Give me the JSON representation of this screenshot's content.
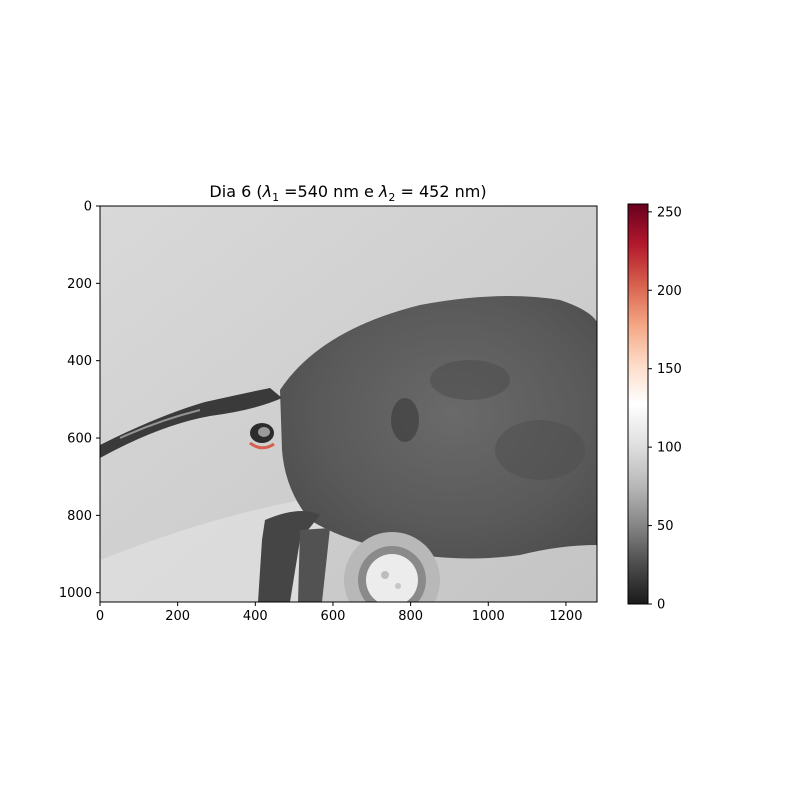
{
  "chart_data": {
    "type": "heatmap",
    "title": "Dia 6 (λ₁ =540 nm e λ₂ = 452 nm)",
    "title_parts": {
      "prefix": "Dia 6 (",
      "lambda": "λ",
      "sub1": "1",
      "mid": " =540 nm e ",
      "sub2": "2",
      "suffix": " = 452 nm)"
    },
    "image_width": 1280,
    "image_height": 1024,
    "xlim": [
      0,
      1280
    ],
    "ylim": [
      1024,
      0
    ],
    "x_ticks": [
      0,
      200,
      400,
      600,
      800,
      1000,
      1200
    ],
    "y_ticks": [
      0,
      200,
      400,
      600,
      800,
      1000
    ],
    "colorbar": {
      "colormap": "RdGy_r",
      "vmin": 0,
      "vmax": 255,
      "ticks": [
        0,
        50,
        100,
        150,
        200,
        250
      ],
      "stops": [
        "#1a1a1a",
        "#4d4d4d",
        "#878787",
        "#bababa",
        "#e0e0e0",
        "#ffffff",
        "#fddbc7",
        "#f4a582",
        "#d6604d",
        "#b2182b",
        "#67001f"
      ]
    },
    "grid": false,
    "xlabel": "",
    "ylabel": ""
  }
}
